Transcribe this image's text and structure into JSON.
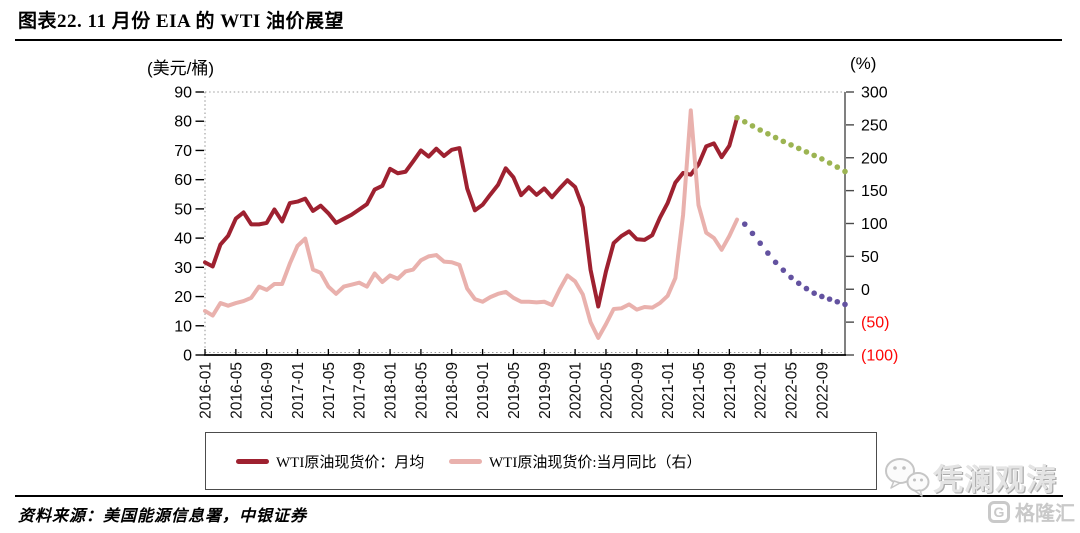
{
  "header": {
    "title": "图表22. 11 月份 EIA 的 WTI 油价展望"
  },
  "source_note": "资料来源：美国能源信息署，中银证券",
  "watermark": {
    "wechat_account": "凭澜观涛",
    "platform": "格隆汇",
    "platform_logo_letter": "G"
  },
  "chart_data": {
    "type": "line",
    "grid": "top-and-bottom-dotted",
    "legend_position": "bottom-boxed",
    "left_axis": {
      "title": "(美元/桶)",
      "min": 0,
      "max": 90,
      "step": 10,
      "ticks": [
        90,
        80,
        70,
        60,
        50,
        40,
        30,
        20,
        10,
        0
      ]
    },
    "right_axis": {
      "title": "(%)",
      "min": -100,
      "max": 300,
      "step": 50,
      "negative_tick_color": "#fe0606",
      "ticks": [
        {
          "label": "300",
          "value": 300
        },
        {
          "label": "250",
          "value": 250
        },
        {
          "label": "200",
          "value": 200
        },
        {
          "label": "150",
          "value": 150
        },
        {
          "label": "100",
          "value": 100
        },
        {
          "label": "50",
          "value": 50
        },
        {
          "label": "0",
          "value": 0
        },
        {
          "label": "(50)",
          "value": -50,
          "negative": true
        },
        {
          "label": "(100)",
          "value": -100,
          "negative": true
        }
      ]
    },
    "x_axis": {
      "start": "2016-01",
      "end": "2022-12",
      "months_total": 84,
      "label_every_n_months": 4,
      "tick_labels": [
        "2016-01",
        "2016-05",
        "2016-09",
        "2017-01",
        "2017-05",
        "2017-09",
        "2018-01",
        "2018-05",
        "2018-09",
        "2019-01",
        "2019-05",
        "2019-09",
        "2020-01",
        "2020-05",
        "2020-09",
        "2021-01",
        "2021-05",
        "2021-09",
        "2022-01",
        "2022-05",
        "2022-09"
      ]
    },
    "series": [
      {
        "id": "wti-spot-price-monthly",
        "label": "WTI原油现货价：月均",
        "axis": "left",
        "style": "solid",
        "color": "#9e2130",
        "start_index": 0,
        "values": [
          31.7,
          30.3,
          37.8,
          40.8,
          46.7,
          48.8,
          44.7,
          44.7,
          45.2,
          49.8,
          45.7,
          52.0,
          52.5,
          53.5,
          49.3,
          51.1,
          48.5,
          45.2,
          46.6,
          48.0,
          49.8,
          51.6,
          56.6,
          57.9,
          63.7,
          62.2,
          62.7,
          66.3,
          70.0,
          67.9,
          70.6,
          68.1,
          70.2,
          70.8,
          57.0,
          49.5,
          51.4,
          54.9,
          58.2,
          63.9,
          60.8,
          54.7,
          57.4,
          54.8,
          57.0,
          54.0,
          57.0,
          59.8,
          57.5,
          50.5,
          29.2,
          16.6,
          28.6,
          38.3,
          40.7,
          42.3,
          39.6,
          39.4,
          41.0,
          47.0,
          52.0,
          59.0,
          62.3,
          61.7,
          65.2,
          71.4,
          72.4,
          67.7,
          71.6,
          81.2
        ]
      },
      {
        "id": "wti-spot-price-yoy",
        "label": "WTI原油现货价:当月同比（右）",
        "axis": "right",
        "style": "solid",
        "color": "#e9b1ad",
        "start_index": 0,
        "values": [
          -33,
          -40,
          -21,
          -25,
          -21,
          -18,
          -13,
          4,
          -1,
          8,
          8,
          39,
          66,
          77,
          30,
          25,
          4,
          -7,
          4,
          7,
          10,
          4,
          24,
          11,
          21,
          16,
          27,
          30,
          44,
          50,
          52,
          42,
          41,
          37,
          1,
          -15,
          -19,
          -12,
          -7,
          -4,
          -13,
          -19,
          -19,
          -20,
          -19,
          -24,
          0,
          21,
          12,
          -8,
          -50,
          -74,
          -53,
          -30,
          -29,
          -23,
          -31,
          -27,
          -28,
          -21,
          -10,
          17,
          113,
          272,
          128,
          86,
          78,
          60,
          81,
          106
        ]
      },
      {
        "id": "wti-price-forecast",
        "label": "",
        "axis": "left",
        "style": "dotted",
        "color": "#9cb452",
        "start_index": 69,
        "values": [
          81.2,
          79.8,
          78.4,
          77.0,
          75.7,
          74.4,
          73.1,
          71.9,
          70.7,
          69.5,
          68.3,
          67.1,
          65.7,
          64.3,
          62.8
        ]
      },
      {
        "id": "wti-yoy-forecast",
        "label": "",
        "axis": "right",
        "style": "dotted",
        "color": "#6352a0",
        "start_index": 70,
        "values": [
          99,
          85,
          70,
          55,
          41,
          29,
          18,
          9,
          1,
          -6,
          -11,
          -15,
          -19,
          -23
        ]
      }
    ],
    "legend": [
      {
        "label": "WTI原油现货价：月均",
        "color": "#9e2130"
      },
      {
        "label": "WTI原油现货价:当月同比（右）",
        "color": "#e9b1ad"
      }
    ]
  }
}
